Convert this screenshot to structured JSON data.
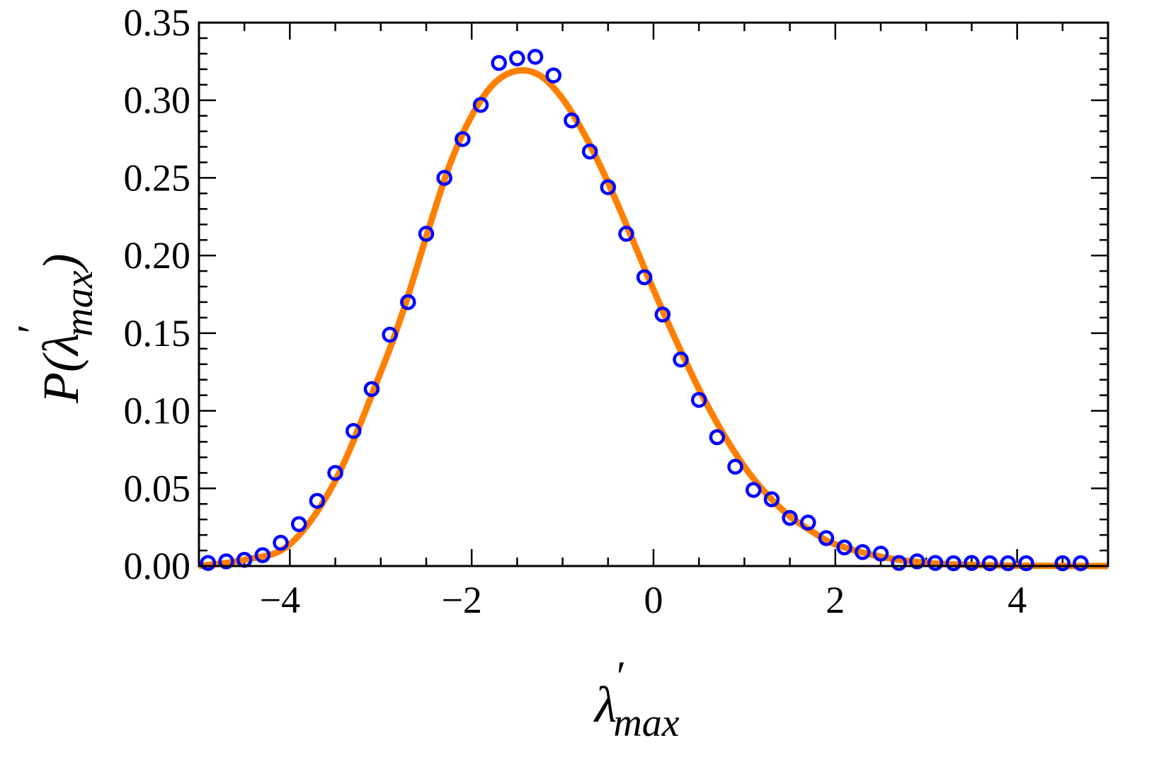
{
  "chart_data": {
    "type": "scatter",
    "title": "",
    "xlabel": "λ′max",
    "ylabel": "P(λ′max)",
    "xlabel_parts": {
      "symbol": "λ",
      "prime": "′",
      "subscript": "max"
    },
    "ylabel_parts": {
      "prefix": "P(",
      "symbol": "λ",
      "prime": "′",
      "subscript": "max",
      "suffix": ")"
    },
    "xlim": [
      -5,
      5
    ],
    "ylim": [
      0,
      0.35
    ],
    "x_ticks": [
      "−4",
      "−2",
      "0",
      "2",
      "4"
    ],
    "x_tick_values": [
      -4,
      -2,
      0,
      2,
      4
    ],
    "y_ticks": [
      "0.00",
      "0.05",
      "0.10",
      "0.15",
      "0.20",
      "0.25",
      "0.30",
      "0.35"
    ],
    "y_tick_values": [
      0,
      0.05,
      0.1,
      0.15,
      0.2,
      0.25,
      0.3,
      0.35
    ],
    "grid": false,
    "series": [
      {
        "type": "scatter",
        "marker": "open-circle",
        "color": "#0000ff",
        "x": [
          -4.9,
          -4.7,
          -4.5,
          -4.3,
          -4.1,
          -3.9,
          -3.7,
          -3.5,
          -3.3,
          -3.1,
          -2.9,
          -2.7,
          -2.5,
          -2.3,
          -2.1,
          -1.9,
          -1.7,
          -1.5,
          -1.3,
          -1.1,
          -0.9,
          -0.7,
          -0.5,
          -0.3,
          -0.1,
          0.1,
          0.3,
          0.5,
          0.7,
          0.9,
          1.1,
          1.3,
          1.5,
          1.7,
          1.9,
          2.1,
          2.3,
          2.5,
          2.7,
          2.9,
          3.1,
          3.3,
          3.5,
          3.7,
          3.9,
          4.1,
          4.5,
          4.7
        ],
        "y": [
          0.002,
          0.003,
          0.004,
          0.007,
          0.015,
          0.027,
          0.042,
          0.06,
          0.087,
          0.114,
          0.149,
          0.17,
          0.214,
          0.25,
          0.275,
          0.297,
          0.324,
          0.327,
          0.328,
          0.316,
          0.287,
          0.267,
          0.244,
          0.214,
          0.186,
          0.162,
          0.133,
          0.107,
          0.083,
          0.064,
          0.049,
          0.043,
          0.031,
          0.028,
          0.018,
          0.012,
          0.009,
          0.008,
          0.002,
          0.003,
          0.002,
          0.001,
          0.002,
          0.001,
          0.001,
          0.0005,
          0.0,
          0.0
        ]
      },
      {
        "type": "line",
        "color": "#ff7f00",
        "x": [
          -5,
          -4.5,
          -4,
          -3.5,
          -3,
          -2.75,
          -2.5,
          -2.25,
          -2,
          -1.75,
          -1.5,
          -1.25,
          -1,
          -0.75,
          -0.5,
          -0.25,
          0,
          0.25,
          0.5,
          0.75,
          1,
          1.25,
          1.5,
          1.75,
          2,
          2.5,
          3,
          3.5,
          4,
          5
        ],
        "y": [
          0.0,
          0.004,
          0.014,
          0.055,
          0.125,
          0.165,
          0.212,
          0.257,
          0.29,
          0.311,
          0.319,
          0.316,
          0.301,
          0.277,
          0.247,
          0.213,
          0.178,
          0.145,
          0.114,
          0.087,
          0.064,
          0.046,
          0.032,
          0.022,
          0.014,
          0.006,
          0.002,
          0.0007,
          0.0002,
          0.0
        ]
      }
    ]
  }
}
